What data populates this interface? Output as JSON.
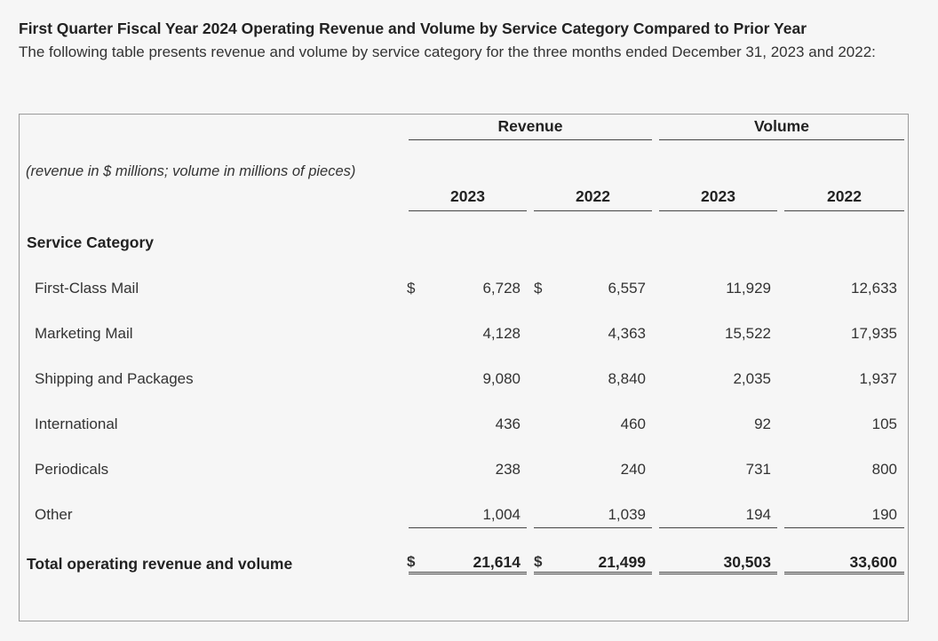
{
  "heading": {
    "title": "First Quarter Fiscal Year 2024 Operating Revenue and Volume by Service Category Compared to Prior Year",
    "description": "The following table presents revenue and volume by service category for the three months ended December 31, 2023 and 2022:"
  },
  "table": {
    "group_headers": [
      "Revenue",
      "Volume"
    ],
    "units_note": "(revenue in $ millions; volume in millions of pieces)",
    "years": [
      "2023",
      "2022",
      "2023",
      "2022"
    ],
    "section_header": "Service Category",
    "currency_symbol": "$",
    "rows": [
      {
        "label": "First-Class Mail",
        "rev_2023": "6,728",
        "rev_2022": "6,557",
        "vol_2023": "11,929",
        "vol_2022": "12,633"
      },
      {
        "label": "Marketing Mail",
        "rev_2023": "4,128",
        "rev_2022": "4,363",
        "vol_2023": "15,522",
        "vol_2022": "17,935"
      },
      {
        "label": "Shipping and Packages",
        "rev_2023": "9,080",
        "rev_2022": "8,840",
        "vol_2023": "2,035",
        "vol_2022": "1,937"
      },
      {
        "label": "International",
        "rev_2023": "436",
        "rev_2022": "460",
        "vol_2023": "92",
        "vol_2022": "105"
      },
      {
        "label": "Periodicals",
        "rev_2023": "238",
        "rev_2022": "240",
        "vol_2023": "731",
        "vol_2022": "800"
      },
      {
        "label": "Other",
        "rev_2023": "1,004",
        "rev_2022": "1,039",
        "vol_2023": "194",
        "vol_2022": "190"
      }
    ],
    "total": {
      "label": "Total operating revenue and volume",
      "rev_2023": "21,614",
      "rev_2022": "21,499",
      "vol_2023": "30,503",
      "vol_2022": "33,600"
    }
  }
}
